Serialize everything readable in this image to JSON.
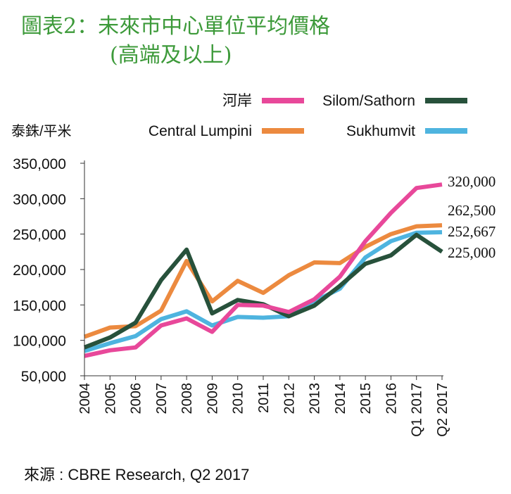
{
  "title_line1": "圖表2：未來市中心單位平均價格",
  "title_line2": "(高端及以上)",
  "source": "來源 : CBRE Research, Q2 2017",
  "colors": {
    "title": "#3d9a3a",
    "axis": "#333333"
  },
  "chart_data": {
    "type": "line",
    "ylabel": "泰銖/平米",
    "xlabel": "",
    "ylim": [
      50000,
      350000
    ],
    "y_ticks": [
      "350,000",
      "300,000",
      "250,000",
      "200,000",
      "150,000",
      "100,000",
      "50,000"
    ],
    "y_tick_values": [
      350000,
      300000,
      250000,
      200000,
      150000,
      100000,
      50000
    ],
    "categories": [
      "2004",
      "2005",
      "2006",
      "2007",
      "2008",
      "2009",
      "2010",
      "2011",
      "2012",
      "2013",
      "2014",
      "2015",
      "2016",
      "Q1 2017",
      "Q2 2017"
    ],
    "grid": false,
    "legend_position": "top",
    "series": [
      {
        "name": "河岸",
        "color": "#e8489a",
        "values": [
          78000,
          86000,
          90000,
          121000,
          131000,
          112000,
          150000,
          149000,
          140000,
          158000,
          190000,
          240000,
          280000,
          315000,
          320000
        ],
        "end_label": "320,000"
      },
      {
        "name": "Central Lumpini",
        "color": "#ec8a3f",
        "values": [
          105000,
          118000,
          120000,
          142000,
          212000,
          155000,
          184000,
          167000,
          192000,
          210000,
          209000,
          232000,
          250000,
          261000,
          262500
        ],
        "end_label": "262,500"
      },
      {
        "name": "Silom/Sathorn",
        "color": "#27513b",
        "values": [
          90000,
          104000,
          125000,
          185000,
          228000,
          138000,
          157000,
          151000,
          134000,
          149000,
          177000,
          208000,
          220000,
          249000,
          225000
        ],
        "end_label": "225,000"
      },
      {
        "name": "Sukhumvit",
        "color": "#4eb4df",
        "values": [
          85000,
          96000,
          106000,
          130000,
          141000,
          121000,
          133000,
          132000,
          134000,
          155000,
          173000,
          217000,
          240000,
          252000,
          252667
        ],
        "end_label": "252,667"
      }
    ]
  }
}
